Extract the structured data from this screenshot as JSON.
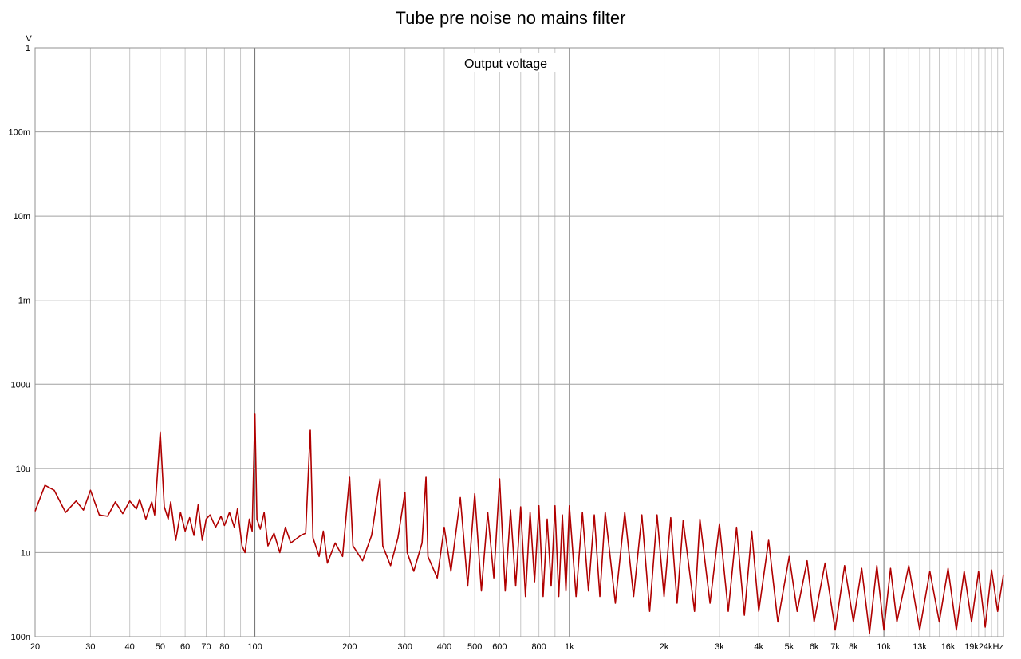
{
  "chart_data": {
    "type": "line",
    "title": "Tube pre noise no mains filter",
    "subtitle": "Output voltage",
    "ylabel": "V",
    "xscale": "log",
    "yscale": "log",
    "grid": true,
    "color": "#b00000",
    "xlim": [
      20,
      24000
    ],
    "ylim": [
      1e-07,
      1
    ],
    "xticks": [
      20,
      30,
      40,
      50,
      60,
      70,
      80,
      100,
      200,
      300,
      400,
      500,
      600,
      800,
      {
        "value": 1000,
        "label": "1k"
      },
      {
        "value": 2000,
        "label": "2k"
      },
      {
        "value": 3000,
        "label": "3k"
      },
      {
        "value": 4000,
        "label": "4k"
      },
      {
        "value": 5000,
        "label": "5k"
      },
      {
        "value": 6000,
        "label": "6k"
      },
      {
        "value": 7000,
        "label": "7k"
      },
      {
        "value": 8000,
        "label": "8k"
      },
      {
        "value": 10000,
        "label": "10k"
      },
      {
        "value": 13000,
        "label": "13k"
      },
      {
        "value": 16000,
        "label": "16k"
      },
      {
        "value": 19000,
        "label": "19k"
      },
      {
        "value": 24000,
        "label": "24kHz"
      }
    ],
    "xminor": [
      90,
      700,
      900,
      9000,
      11000,
      12000,
      14000,
      15000,
      17000,
      18000,
      20000,
      21000,
      22000,
      23000
    ],
    "yticks": [
      1,
      {
        "value": 0.1,
        "label": "100m"
      },
      {
        "value": 0.01,
        "label": "10m"
      },
      {
        "value": 0.001,
        "label": "1m"
      },
      {
        "value": 0.0001,
        "label": "100u"
      },
      {
        "value": 1e-05,
        "label": "10u"
      },
      {
        "value": 1e-06,
        "label": "1u"
      },
      {
        "value": 1e-07,
        "label": "100n"
      }
    ],
    "x": [
      20,
      21.5,
      23,
      25,
      27,
      28.5,
      30,
      32,
      34,
      36,
      38,
      40,
      42,
      43,
      45,
      47,
      48,
      50,
      51.5,
      53,
      54,
      56,
      58,
      60,
      62,
      64,
      66,
      68,
      70,
      72,
      75,
      78,
      80,
      83,
      86,
      88,
      91,
      93,
      96,
      98,
      100,
      101.5,
      104,
      107,
      110,
      115,
      120,
      125,
      130,
      140,
      145,
      150,
      153,
      160,
      165,
      170,
      180,
      190,
      200,
      205,
      220,
      235,
      250,
      255,
      270,
      285,
      300,
      305,
      320,
      340,
      350,
      355,
      380,
      400,
      420,
      450,
      475,
      500,
      525,
      550,
      575,
      600,
      625,
      650,
      675,
      700,
      725,
      750,
      775,
      800,
      825,
      850,
      875,
      900,
      925,
      950,
      975,
      1000,
      1050,
      1100,
      1150,
      1200,
      1250,
      1300,
      1400,
      1500,
      1600,
      1700,
      1800,
      1900,
      2000,
      2100,
      2200,
      2300,
      2500,
      2600,
      2800,
      3000,
      3200,
      3400,
      3600,
      3800,
      4000,
      4300,
      4600,
      5000,
      5300,
      5700,
      6000,
      6500,
      7000,
      7500,
      8000,
      8500,
      9000,
      9500,
      10000,
      10500,
      11000,
      12000,
      13000,
      14000,
      15000,
      16000,
      17000,
      18000,
      19000,
      20000,
      21000,
      22000,
      23000,
      24000
    ],
    "values": [
      3.1e-06,
      6.3e-06,
      5.5e-06,
      3e-06,
      4.1e-06,
      3.2e-06,
      5.5e-06,
      2.8e-06,
      2.7e-06,
      4e-06,
      2.9e-06,
      4.1e-06,
      3.3e-06,
      4.3e-06,
      2.5e-06,
      4e-06,
      2.8e-06,
      2.7e-05,
      3.5e-06,
      2.5e-06,
      4e-06,
      1.4e-06,
      3e-06,
      1.8e-06,
      2.6e-06,
      1.6e-06,
      3.7e-06,
      1.4e-06,
      2.5e-06,
      2.8e-06,
      2e-06,
      2.7e-06,
      2.1e-06,
      3e-06,
      2e-06,
      3.3e-06,
      1.2e-06,
      1e-06,
      2.5e-06,
      1.8e-06,
      4.5e-05,
      2.5e-06,
      1.9e-06,
      3e-06,
      1.2e-06,
      1.7e-06,
      1e-06,
      2e-06,
      1.3e-06,
      1.6e-06,
      1.7e-06,
      2.9e-05,
      1.5e-06,
      9e-07,
      1.8e-06,
      7.5e-07,
      1.3e-06,
      9e-07,
      8e-06,
      1.2e-06,
      8e-07,
      1.6e-06,
      7.5e-06,
      1.2e-06,
      7e-07,
      1.5e-06,
      5.2e-06,
      1e-06,
      6e-07,
      1.3e-06,
      8e-06,
      9e-07,
      5e-07,
      2e-06,
      6e-07,
      4.5e-06,
      4e-07,
      5e-06,
      3.5e-07,
      3e-06,
      5e-07,
      7.5e-06,
      3.5e-07,
      3.2e-06,
      4e-07,
      3.5e-06,
      3e-07,
      3e-06,
      4.5e-07,
      3.6e-06,
      3e-07,
      2.5e-06,
      4e-07,
      3.6e-06,
      3e-07,
      2.8e-06,
      3.5e-07,
      3.6e-06,
      3e-07,
      3e-06,
      3.5e-07,
      2.8e-06,
      3e-07,
      3e-06,
      2.5e-07,
      3e-06,
      3e-07,
      2.8e-06,
      2e-07,
      2.8e-06,
      3e-07,
      2.6e-06,
      2.5e-07,
      2.4e-06,
      2e-07,
      2.5e-06,
      2.5e-07,
      2.2e-06,
      2e-07,
      2e-06,
      1.8e-07,
      1.8e-06,
      2e-07,
      1.4e-06,
      1.5e-07,
      9e-07,
      2e-07,
      8e-07,
      1.5e-07,
      7.5e-07,
      1.2e-07,
      7e-07,
      1.5e-07,
      6.5e-07,
      1.1e-07,
      7e-07,
      1.2e-07,
      6.5e-07,
      1.5e-07,
      7e-07,
      1.2e-07,
      6e-07,
      1.5e-07,
      6.5e-07,
      1.2e-07,
      6e-07,
      1.5e-07,
      6e-07,
      1.3e-07,
      6.2e-07,
      2e-07,
      5.5e-07
    ]
  }
}
